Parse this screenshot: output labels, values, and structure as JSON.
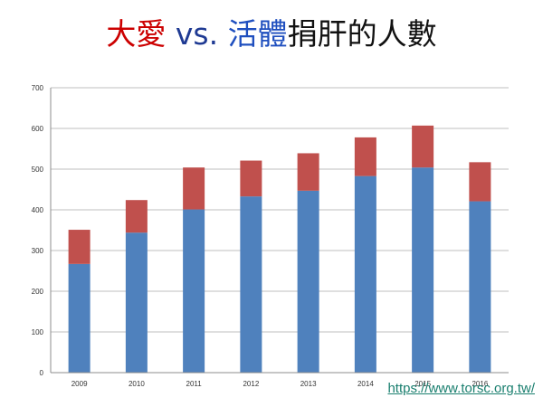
{
  "title": {
    "part1": "大愛",
    "sep": " vs. ",
    "part2": "活體",
    "part3": "捐肝的人數",
    "colors": {
      "part1": "#cc0000",
      "sep": "#1f3a93",
      "part2": "#1f4fbf",
      "part3": "#111111"
    }
  },
  "link": {
    "text": "https://www.torsc.org.tw/"
  },
  "chart_data": {
    "type": "bar",
    "stacked": true,
    "categories": [
      "2009",
      "2010",
      "2011",
      "2012",
      "2013",
      "2014",
      "2015",
      "2016"
    ],
    "series": [
      {
        "values": [
          267,
          344,
          401,
          433,
          447,
          483,
          504,
          421
        ],
        "color": "#4f81bd"
      },
      {
        "values": [
          84,
          80,
          103,
          88,
          92,
          95,
          103,
          96
        ],
        "color": "#c0504d"
      }
    ],
    "yticks": [
      0,
      100,
      200,
      300,
      400,
      500,
      600,
      700
    ],
    "ylim": [
      0,
      700
    ],
    "grid": true,
    "legend": "none",
    "xlabel": "",
    "ylabel": ""
  }
}
